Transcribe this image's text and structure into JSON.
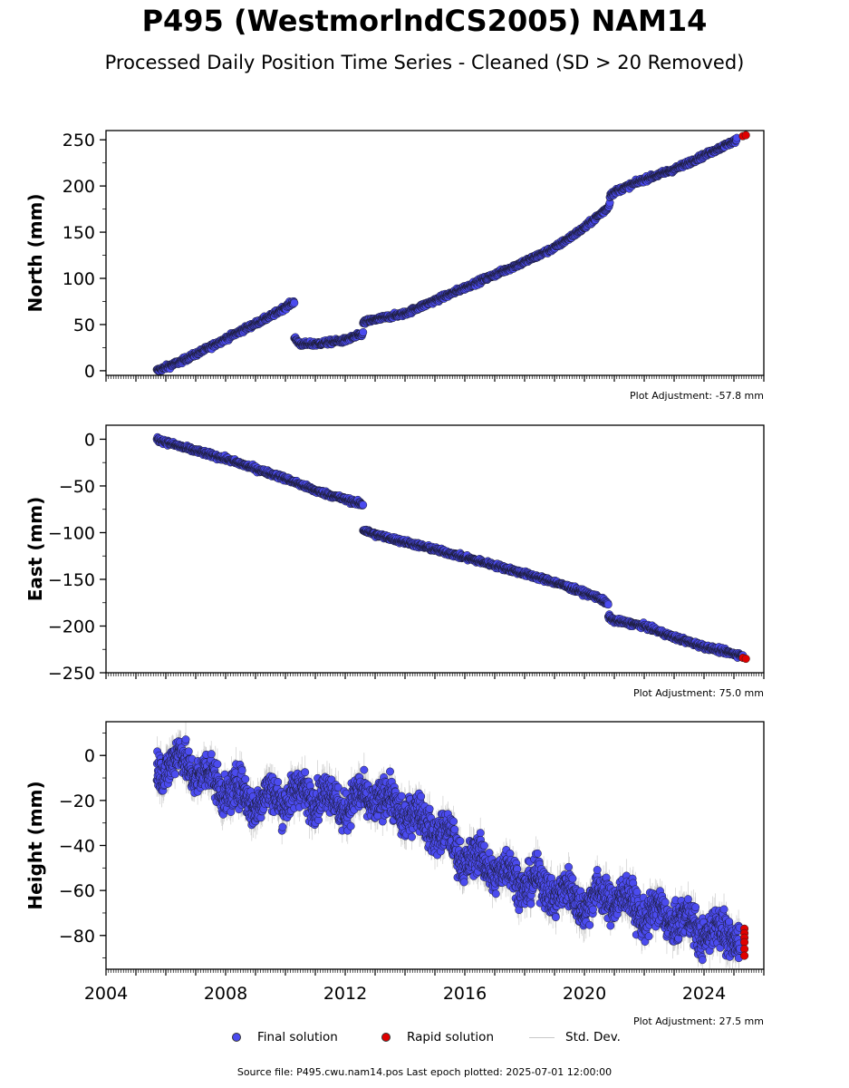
{
  "title": "P495 (WestmorlndCS2005) NAM14",
  "subtitle": "Processed Daily Position Time Series - Cleaned (SD > 20 Removed)",
  "legend": {
    "final": "Final solution",
    "rapid": "Rapid solution",
    "std": "Std. Dev."
  },
  "footer": "Source file: P495.cwu.nam14.pos  Last epoch plotted: 2025-07-01 12:00:00",
  "colors": {
    "final": "#4b4bef",
    "rapid": "#e00000",
    "std": "#b0b0b0",
    "marker_edge": "#1a1a2e"
  },
  "chart_data": [
    {
      "type": "scatter",
      "ylabel": "North (mm)",
      "xlim": [
        2004,
        2026
      ],
      "ylim": [
        -5,
        260
      ],
      "yticks": [
        0,
        50,
        100,
        150,
        200,
        250
      ],
      "xticks": [],
      "note": "Plot Adjustment: -57.8 mm",
      "series": [
        {
          "name": "Final solution",
          "segments": [
            {
              "x": [
                2005.7,
                2006.5,
                2007.5,
                2008.5,
                2009.5,
                2010.3
              ],
              "y": [
                0,
                10,
                26,
                43,
                59,
                75
              ]
            },
            {
              "x": [
                2010.3,
                2010.5,
                2011.0,
                2012.0,
                2012.6
              ],
              "y": [
                35,
                29,
                29,
                33,
                40
              ]
            },
            {
              "x": [
                2012.6,
                2012.8,
                2014.0,
                2016.0,
                2018.0,
                2019.0,
                2020.0,
                2020.8,
                2020.85
              ],
              "y": [
                52,
                54,
                62,
                90,
                118,
                133,
                155,
                177,
                182
              ]
            },
            {
              "x": [
                2020.85,
                2021.1,
                2022.0,
                2023.0,
                2024.0,
                2025.1
              ],
              "y": [
                190,
                195,
                207,
                218,
                233,
                250
              ]
            }
          ],
          "noise": 1.8
        },
        {
          "name": "Rapid solution",
          "x": [
            2025.3,
            2025.4
          ],
          "y": [
            254,
            255
          ]
        }
      ]
    },
    {
      "type": "scatter",
      "ylabel": "East (mm)",
      "xlim": [
        2004,
        2026
      ],
      "ylim": [
        -250,
        15
      ],
      "yticks": [
        0,
        -50,
        -100,
        -150,
        -200,
        -250
      ],
      "xticks": [],
      "note": "Plot Adjustment: 75.0 mm",
      "series": [
        {
          "name": "Final solution",
          "segments": [
            {
              "x": [
                2005.7,
                2006.5,
                2008.0,
                2010.0,
                2011.0,
                2012.6
              ],
              "y": [
                0,
                -8,
                -21,
                -42,
                -55,
                -70
              ]
            },
            {
              "x": [
                2012.6,
                2013.0,
                2015.0,
                2017.0,
                2019.0,
                2020.5,
                2020.8
              ],
              "y": [
                -97,
                -102,
                -118,
                -135,
                -153,
                -170,
                -177
              ]
            },
            {
              "x": [
                2020.8,
                2021.0,
                2022.0,
                2023.0,
                2024.0,
                2025.3
              ],
              "y": [
                -190,
                -194,
                -200,
                -212,
                -222,
                -232
              ]
            }
          ],
          "noise": 1.8
        },
        {
          "name": "Rapid solution",
          "x": [
            2025.3,
            2025.4
          ],
          "y": [
            -234,
            -235
          ]
        }
      ]
    },
    {
      "type": "scatter",
      "ylabel": "Height (mm)",
      "xlim": [
        2004,
        2026
      ],
      "ylim": [
        -95,
        15
      ],
      "yticks": [
        0,
        -20,
        -40,
        -60,
        -80
      ],
      "xticks": [
        2004,
        2008,
        2012,
        2016,
        2020,
        2024
      ],
      "note": "Plot Adjustment: 27.5 mm",
      "series": [
        {
          "name": "Final solution",
          "segments": [
            {
              "x": [
                2005.7,
                2006.5,
                2008.0,
                2009.0,
                2010.0,
                2011.0,
                2012.0,
                2013.0,
                2014.0,
                2015.0,
                2016.0,
                2017.0,
                2018.0,
                2019.0,
                2020.0,
                2021.0,
                2022.0,
                2023.0,
                2024.0,
                2025.2
              ],
              "y": [
                -5,
                -2,
                -15,
                -20,
                -18,
                -17,
                -22,
                -18,
                -25,
                -32,
                -45,
                -50,
                -56,
                -60,
                -65,
                -62,
                -70,
                -72,
                -78,
                -80
              ]
            }
          ],
          "noise": 6
        },
        {
          "name": "Rapid solution",
          "x": [
            2025.35,
            2025.35,
            2025.35,
            2025.35,
            2025.35,
            2025.35
          ],
          "y": [
            -77,
            -79,
            -81,
            -83,
            -86,
            -89
          ]
        }
      ]
    }
  ]
}
